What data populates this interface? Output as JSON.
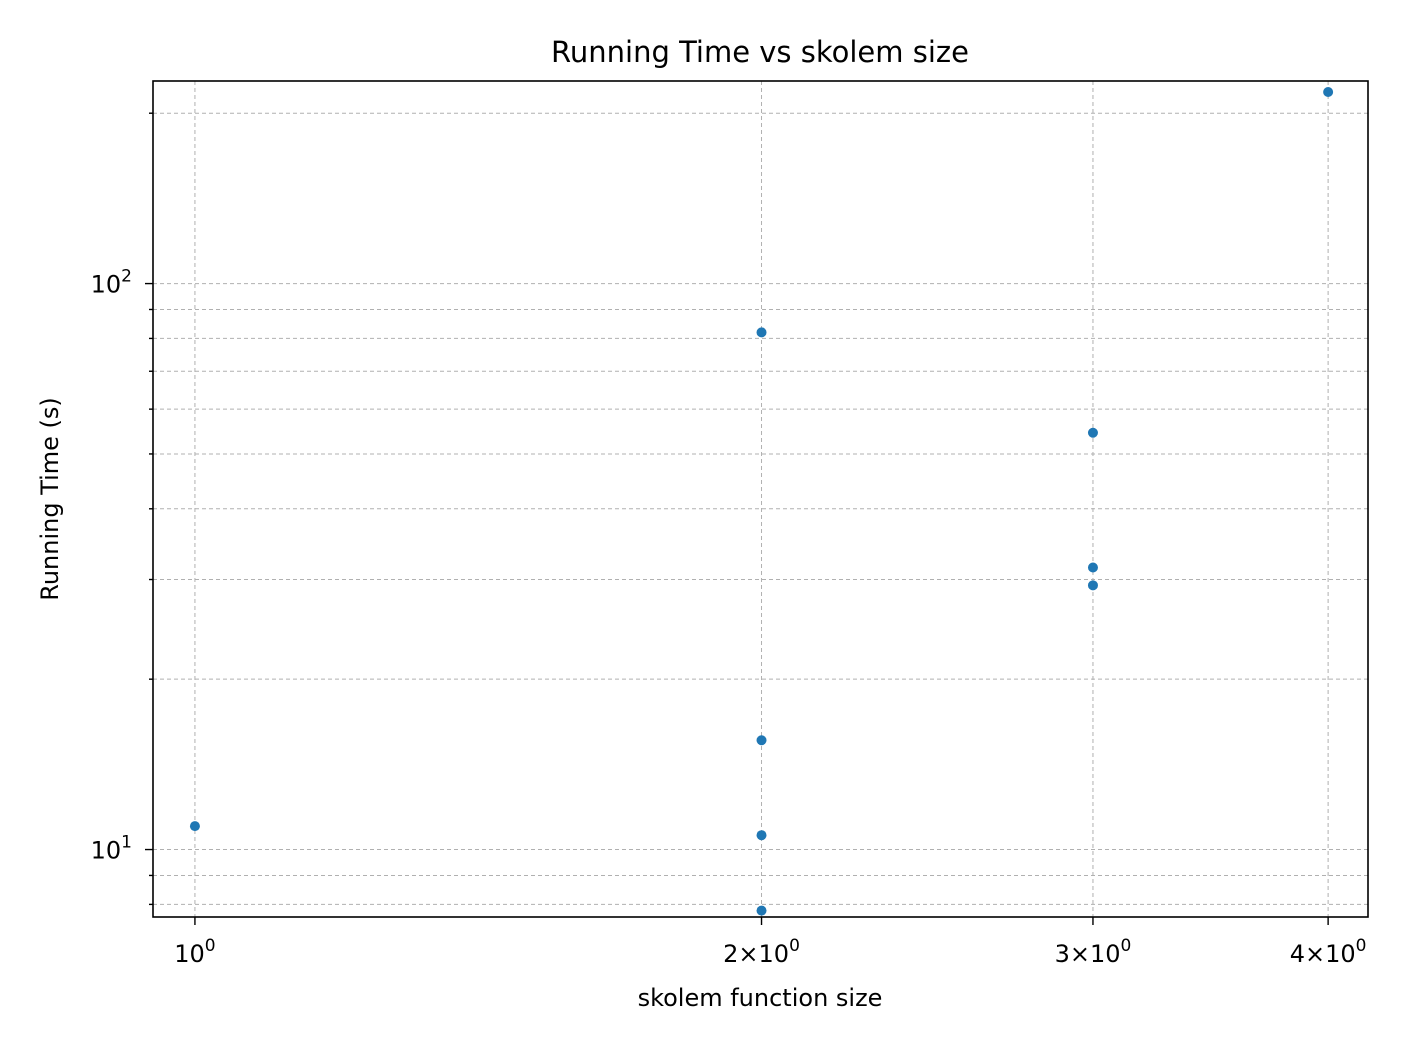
{
  "chart_data": {
    "type": "scatter",
    "title": "Running Time vs skolem size",
    "xlabel": "skolem function size",
    "ylabel": "Running Time (s)",
    "x_scale": "log",
    "y_scale": "log",
    "xlim": [
      0.95,
      4.2
    ],
    "ylim": [
      7.6,
      228
    ],
    "grid": true,
    "x_ticks": [
      {
        "value": 1,
        "mant": "",
        "exp": "0"
      },
      {
        "value": 2,
        "mant": "2",
        "exp": "0"
      },
      {
        "value": 3,
        "mant": "3",
        "exp": "0"
      },
      {
        "value": 4,
        "mant": "4",
        "exp": "0"
      }
    ],
    "y_ticks": [
      {
        "value": 10,
        "exp": "1"
      },
      {
        "value": 100,
        "exp": "2"
      }
    ],
    "y_minor_ticks": [
      8,
      9,
      20,
      30,
      40,
      50,
      60,
      70,
      80,
      90,
      200
    ],
    "marker_color": "#1f77b4",
    "points": [
      {
        "x": 1,
        "y": 11.0
      },
      {
        "x": 2,
        "y": 82.0
      },
      {
        "x": 2,
        "y": 15.6
      },
      {
        "x": 2,
        "y": 10.6
      },
      {
        "x": 2,
        "y": 7.8
      },
      {
        "x": 3,
        "y": 54.5
      },
      {
        "x": 3,
        "y": 31.5
      },
      {
        "x": 3,
        "y": 29.3
      },
      {
        "x": 4,
        "y": 218.0
      }
    ]
  }
}
